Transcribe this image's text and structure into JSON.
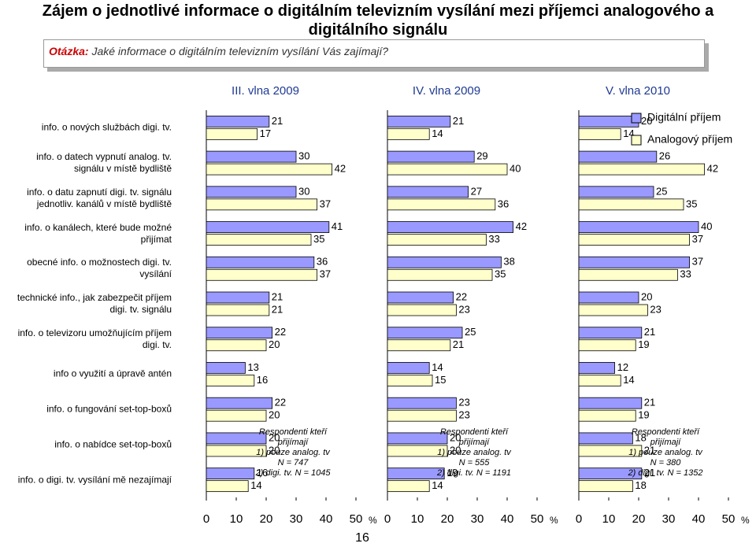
{
  "chart_data": {
    "type": "bar",
    "orientation": "horizontal",
    "title": "Zájem o jednotlivé informace o digitálním televizním vysílání mezi příjemci analogového a digitálního signálu",
    "question_label": "Otázka:",
    "question": "Jaké informace o digitálním televizním vysílání Vás zajímají?",
    "categories": [
      "info. o nových službách digi. tv.",
      "info. o datech vypnutí analog. tv. signálu v místě bydliště",
      "info. o datu zapnutí digi. tv. signálu jednotliv. kanálů v místě bydliště",
      "info. o kanálech, které bude možné přijímat",
      "obecné info. o možnostech digi. tv. vysílání",
      "technické info., jak zabezpečit příjem digi. tv. signálu",
      "info. o televizoru umožňujícím příjem digi. tv.",
      "info o využití a úpravě antén",
      "info. o fungování set-top-boxů",
      "info. o nabídce set-top-boxů",
      "info. o digi. tv. vysílání mě nezajímají"
    ],
    "legend": "top-right",
    "series": [
      {
        "name": "Digitální příjem",
        "color": "#9999ff"
      },
      {
        "name": "Analogový příjem",
        "color": "#ffffcc"
      }
    ],
    "panels": [
      {
        "title": "III. vlna 2009",
        "values": [
          [
            21,
            30,
            30,
            41,
            36,
            21,
            22,
            13,
            22,
            20,
            16
          ],
          [
            17,
            42,
            37,
            35,
            37,
            21,
            20,
            16,
            20,
            20,
            14
          ]
        ],
        "xlim": [
          0,
          50
        ],
        "xticks": [
          0,
          10,
          20,
          30,
          40,
          50
        ],
        "x_label": "%",
        "note": [
          "Respondenti kteří",
          "přijímají",
          "1) pouze analog. tv",
          "N = 747",
          "2) digi. tv. N = 1045"
        ]
      },
      {
        "title": "IV. vlna 2009",
        "values": [
          [
            21,
            29,
            27,
            42,
            38,
            22,
            25,
            14,
            23,
            20,
            19
          ],
          [
            14,
            40,
            36,
            33,
            35,
            23,
            21,
            15,
            23,
            20,
            14
          ]
        ],
        "xlim": [
          0,
          50
        ],
        "xticks": [
          0,
          10,
          20,
          30,
          40,
          50
        ],
        "x_label": "%",
        "note": [
          "Respondenti kteří",
          "přijímají",
          "1) pouze analog. tv",
          "N = 555",
          "2) digi. tv. N = 1191"
        ]
      },
      {
        "title": "V. vlna 2010",
        "values": [
          [
            20,
            26,
            25,
            40,
            37,
            20,
            21,
            12,
            21,
            18,
            21
          ],
          [
            14,
            42,
            35,
            37,
            33,
            23,
            19,
            14,
            19,
            21,
            18
          ]
        ],
        "xlim": [
          0,
          50
        ],
        "xticks": [
          0,
          10,
          20,
          30,
          40,
          50
        ],
        "x_label": "%",
        "note": [
          "Respondenti kteří",
          "přijímají",
          "1) pouze analog. tv",
          "N = 380",
          "2) digi. tv. N = 1352"
        ]
      }
    ],
    "page_number": 16
  }
}
